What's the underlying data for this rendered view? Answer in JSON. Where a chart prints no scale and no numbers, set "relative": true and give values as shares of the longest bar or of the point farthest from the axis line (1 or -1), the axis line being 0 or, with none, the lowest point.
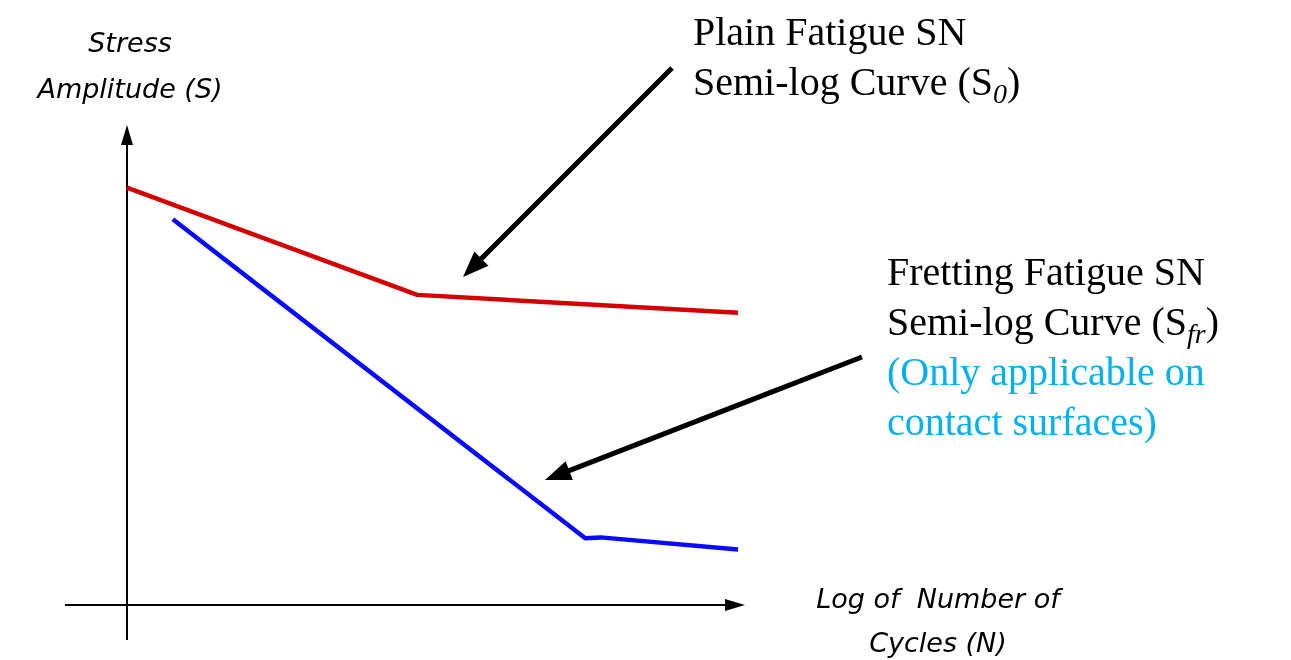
{
  "chart_data": {
    "type": "line",
    "relative": true,
    "xlabel": "Log of  Number of Cycles (N)",
    "ylabel": "Stress Amplitude (S)",
    "line_style": "solid",
    "categories": [
      null,
      null,
      null,
      null,
      null,
      null,
      null,
      null,
      null,
      null,
      null,
      null,
      null,
      null,
      null,
      null,
      null,
      null,
      null,
      null,
      null,
      null,
      null,
      null,
      null,
      null,
      null,
      null,
      null,
      null,
      null,
      null,
      null,
      null,
      null,
      null,
      null,
      null,
      null,
      null,
      null
    ],
    "series": [
      {
        "color": "#d40000",
        "values": [
          1,
          null,
          null,
          null,
          null,
          null,
          null,
          null,
          null,
          null,
          null,
          null,
          null,
          null,
          null,
          null,
          null,
          null,
          null,
          0.743,
          null,
          null,
          null,
          null,
          null,
          null,
          null,
          null,
          null,
          null,
          null,
          null,
          null,
          null,
          null,
          null,
          null,
          null,
          null,
          null,
          0.7
        ]
      },
      {
        "color": "#0a0aff",
        "values": [
          null,
          null,
          null,
          0.924,
          null,
          null,
          null,
          null,
          null,
          null,
          null,
          null,
          null,
          null,
          null,
          null,
          null,
          null,
          null,
          null,
          null,
          null,
          null,
          null,
          null,
          null,
          null,
          null,
          null,
          null,
          0.16,
          0.162,
          null,
          null,
          null,
          null,
          null,
          null,
          null,
          null,
          0.133
        ]
      }
    ],
    "annotations": [
      "Plain Fatigue SN Semi-log Curve (S$_{0}$)",
      "Fretting Fatigue SN Semi-log Curve (S$_{fr}$)",
      "(Only applicable on contact surfaces)"
    ]
  }
}
